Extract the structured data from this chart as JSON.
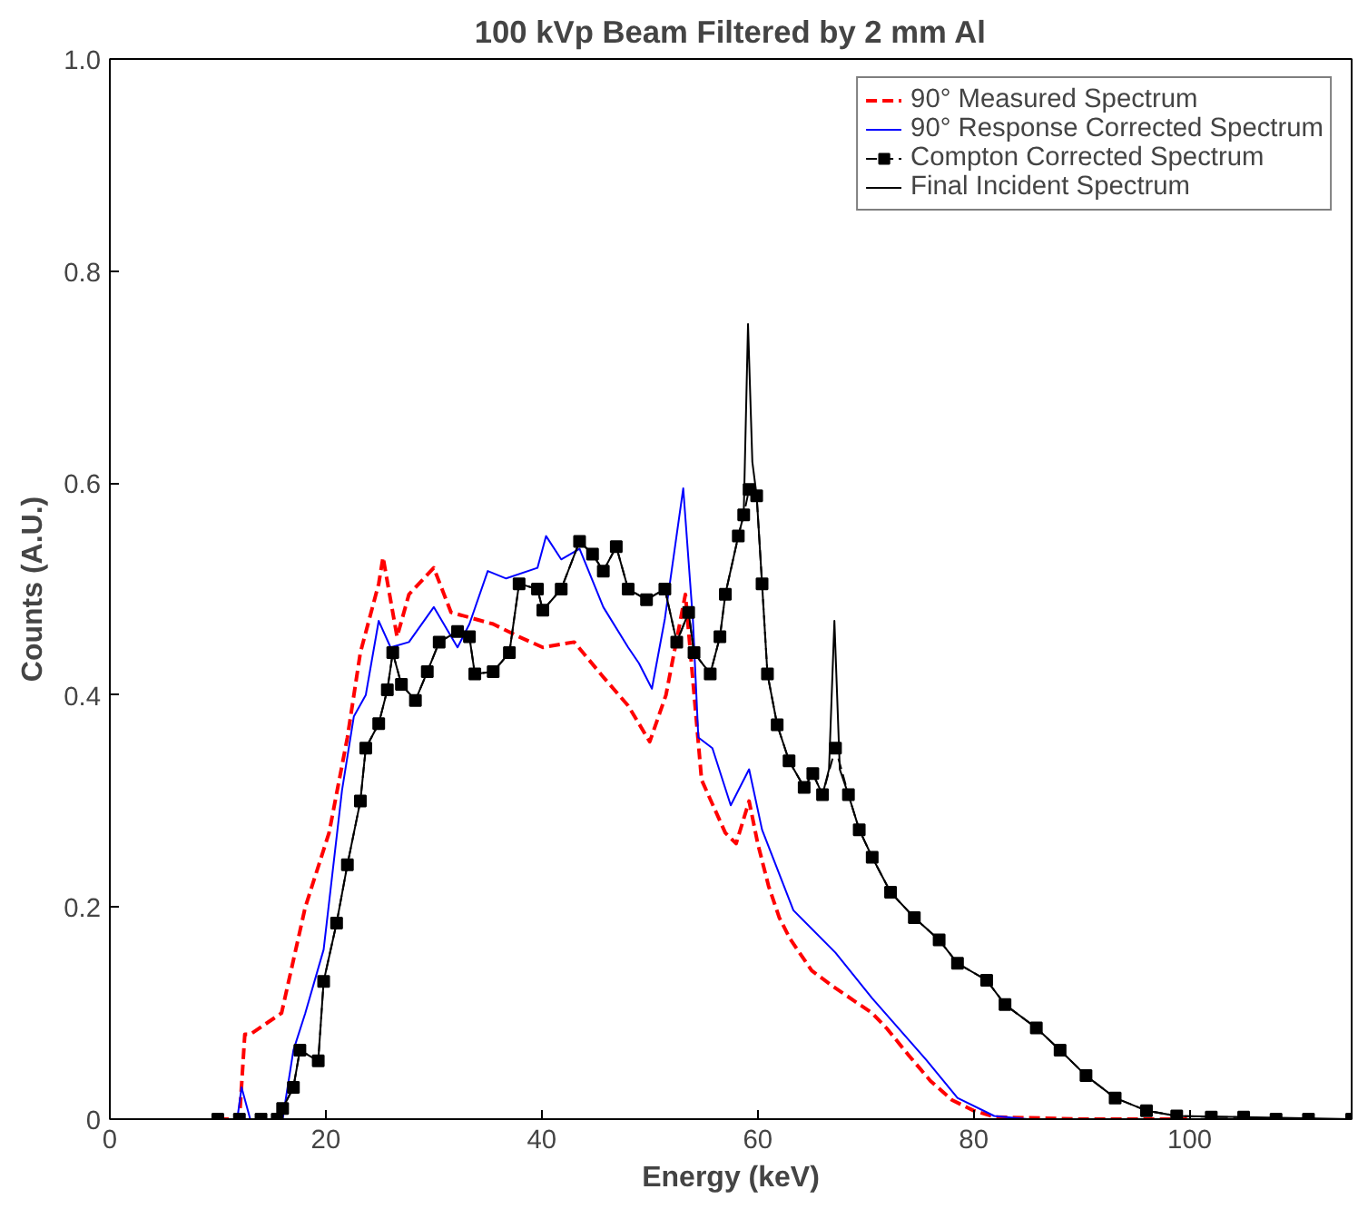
{
  "chart_data": {
    "type": "line",
    "title": "100 kVp Beam Filtered by 2 mm Al",
    "xlabel": "Energy (keV)",
    "ylabel": "Counts (A.U.)",
    "xlim": [
      0,
      115
    ],
    "ylim": [
      0,
      1
    ],
    "xticks": [
      0,
      20,
      40,
      60,
      80,
      100
    ],
    "yticks": [
      0,
      0.2,
      0.4,
      0.6,
      0.8,
      {
        "value": 1.0,
        "label": "1.0"
      }
    ],
    "grid": false,
    "legend": "top right",
    "series": [
      {
        "name": "90° Measured Spectrum",
        "color": "#ff0000",
        "line_style": "dashed",
        "marker": "none",
        "x": [
          10,
          12,
          12.5,
          13,
          15.9,
          18.1,
          20.3,
          22,
          23.2,
          24.9,
          25.3,
          26.6,
          27.7,
          30,
          31.6,
          35.5,
          37.9,
          40.1,
          43,
          45.7,
          48,
          50,
          51.5,
          53.3,
          54.8,
          57,
          58,
          59.2,
          60,
          61,
          62,
          63,
          65,
          67,
          70.6,
          72,
          74,
          76,
          78,
          80,
          82,
          90,
          100
        ],
        "values": [
          0,
          0,
          0.08,
          0.08,
          0.1,
          0.2,
          0.27,
          0.36,
          0.44,
          0.505,
          0.53,
          0.455,
          0.495,
          0.52,
          0.478,
          0.467,
          0.455,
          0.445,
          0.45,
          0.417,
          0.39,
          0.356,
          0.4,
          0.495,
          0.32,
          0.27,
          0.26,
          0.3,
          0.26,
          0.22,
          0.19,
          0.17,
          0.14,
          0.125,
          0.1,
          0.085,
          0.06,
          0.036,
          0.018,
          0.008,
          0.002,
          0,
          0
        ]
      },
      {
        "name": "90° Response Corrected Spectrum",
        "color": "#0000ff",
        "line_style": "solid",
        "marker": "none",
        "x": [
          10,
          11.8,
          12.2,
          13,
          16,
          17,
          18.1,
          19.8,
          21.5,
          22.6,
          23.7,
          24.9,
          26,
          27.7,
          30,
          32.2,
          33.3,
          35,
          36.7,
          39.6,
          40.4,
          41.8,
          43.5,
          45.7,
          48,
          49,
          50.2,
          51.4,
          53.1,
          54,
          54.5,
          55.8,
          57.5,
          59.2,
          60.4,
          63.3,
          67.2,
          70.6,
          75.6,
          78.5,
          81.9,
          85,
          100
        ],
        "values": [
          0,
          0,
          0.03,
          0,
          0,
          0.065,
          0.1,
          0.16,
          0.31,
          0.38,
          0.4,
          0.47,
          0.445,
          0.45,
          0.483,
          0.445,
          0.467,
          0.517,
          0.51,
          0.52,
          0.55,
          0.528,
          0.538,
          0.483,
          0.445,
          0.43,
          0.406,
          0.472,
          0.595,
          0.47,
          0.36,
          0.35,
          0.296,
          0.33,
          0.273,
          0.197,
          0.157,
          0.114,
          0.056,
          0.02,
          0.003,
          0,
          0
        ]
      },
      {
        "name": "Compton Corrected Spectrum",
        "color": "#000000",
        "line_style": "dashed",
        "marker": "square",
        "x": [
          10,
          12,
          14,
          15.5,
          16,
          17,
          17.6,
          19.3,
          19.8,
          21,
          22,
          23.2,
          23.7,
          24.9,
          25.7,
          26.2,
          27,
          28.3,
          29.4,
          30.5,
          32.2,
          33.3,
          33.8,
          35.5,
          37,
          37.9,
          39.6,
          40.1,
          41.8,
          43.5,
          44.7,
          45.7,
          46.9,
          48,
          49.7,
          51.4,
          52.5,
          53.6,
          54.1,
          55.6,
          56.5,
          57,
          58.2,
          58.7,
          59.2,
          59.9,
          60.4,
          60.9,
          61.8,
          62.9,
          64.3,
          65.1,
          66,
          67.2,
          68.4,
          69.4,
          70.6,
          72.3,
          74.5,
          76.8,
          78.5,
          81.2,
          82.9,
          85.8,
          88,
          90.4,
          93.1,
          96,
          98.8,
          102,
          105,
          108,
          111,
          115
        ],
        "values": [
          0,
          0,
          0,
          0,
          0.01,
          0.03,
          0.065,
          0.055,
          0.13,
          0.185,
          0.24,
          0.3,
          0.35,
          0.373,
          0.405,
          0.44,
          0.41,
          0.395,
          0.422,
          0.45,
          0.46,
          0.455,
          0.42,
          0.422,
          0.44,
          0.505,
          0.5,
          0.48,
          0.5,
          0.545,
          0.533,
          0.517,
          0.54,
          0.5,
          0.49,
          0.5,
          0.45,
          0.478,
          0.44,
          0.42,
          0.455,
          0.495,
          0.55,
          0.57,
          0.594,
          0.588,
          0.505,
          0.42,
          0.372,
          0.338,
          0.313,
          0.326,
          0.306,
          0.35,
          0.306,
          0.273,
          0.247,
          0.214,
          0.19,
          0.169,
          0.147,
          0.131,
          0.108,
          0.086,
          0.065,
          0.041,
          0.02,
          0.008,
          0.003,
          0.002,
          0.002,
          0,
          0,
          0
        ]
      },
      {
        "name": "Final Incident Spectrum",
        "color": "#000000",
        "line_style": "solid",
        "marker": "none",
        "x": [
          10,
          15.5,
          16,
          17,
          17.6,
          19.3,
          19.8,
          21,
          22,
          23.2,
          23.7,
          24.9,
          25.7,
          26.2,
          27,
          28.3,
          29.4,
          30.5,
          32.2,
          33.3,
          33.8,
          35.5,
          37,
          37.9,
          39.6,
          40.1,
          41.8,
          43.5,
          44.7,
          45.7,
          46.9,
          48,
          49.7,
          51.4,
          52.5,
          53.6,
          54.1,
          55.6,
          56.5,
          57,
          58.2,
          58.7,
          59.1,
          59.5,
          59.9,
          60.4,
          60.9,
          61.8,
          62.9,
          64.3,
          65.1,
          66,
          66.6,
          67.1,
          67.6,
          68.4,
          69.4,
          70.6,
          72.3,
          74.5,
          76.8,
          78.5,
          81.2,
          82.9,
          85.8,
          88,
          90.4,
          93.1,
          96,
          98.8,
          105,
          115
        ],
        "values": [
          0,
          0,
          0.01,
          0.03,
          0.065,
          0.055,
          0.13,
          0.185,
          0.24,
          0.3,
          0.35,
          0.373,
          0.405,
          0.44,
          0.41,
          0.395,
          0.422,
          0.45,
          0.46,
          0.455,
          0.42,
          0.422,
          0.44,
          0.505,
          0.5,
          0.48,
          0.5,
          0.545,
          0.533,
          0.517,
          0.54,
          0.5,
          0.49,
          0.5,
          0.45,
          0.478,
          0.44,
          0.42,
          0.455,
          0.495,
          0.55,
          0.57,
          0.75,
          0.62,
          0.588,
          0.505,
          0.42,
          0.372,
          0.338,
          0.313,
          0.326,
          0.306,
          0.33,
          0.47,
          0.33,
          0.306,
          0.273,
          0.247,
          0.214,
          0.19,
          0.169,
          0.147,
          0.131,
          0.108,
          0.086,
          0.065,
          0.041,
          0.02,
          0.008,
          0.003,
          0.002,
          0
        ]
      }
    ]
  }
}
